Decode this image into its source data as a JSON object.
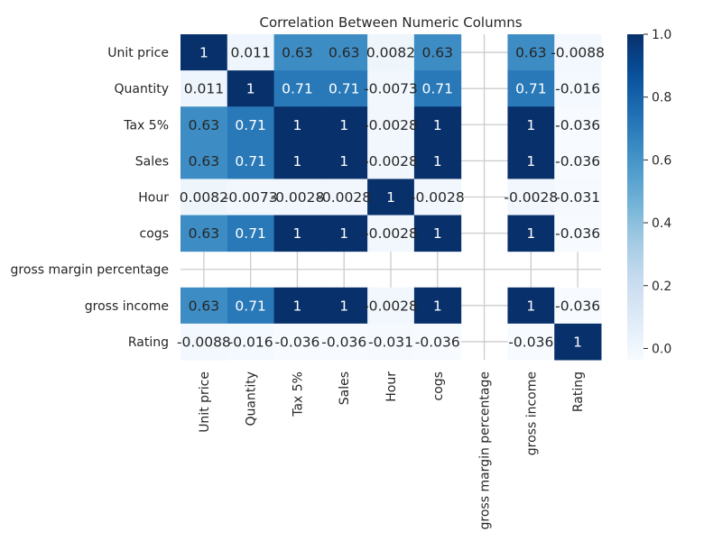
{
  "chart_data": {
    "type": "heatmap",
    "title": "Correlation Between Numeric Columns",
    "rows": [
      "Unit price",
      "Quantity",
      "Tax 5%",
      "Sales",
      "Hour",
      "cogs",
      "gross margin percentage",
      "gross income",
      "Rating"
    ],
    "cols": [
      "Unit price",
      "Quantity",
      "Tax 5%",
      "Sales",
      "Hour",
      "cogs",
      "gross margin percentage",
      "gross income",
      "Rating"
    ],
    "values": [
      [
        1,
        0.011,
        0.63,
        0.63,
        0.0082,
        0.63,
        null,
        0.63,
        -0.0088
      ],
      [
        0.011,
        1,
        0.71,
        0.71,
        -0.0073,
        0.71,
        null,
        0.71,
        -0.016
      ],
      [
        0.63,
        0.71,
        1,
        1,
        -0.0028,
        1,
        null,
        1,
        -0.036
      ],
      [
        0.63,
        0.71,
        1,
        1,
        -0.0028,
        1,
        null,
        1,
        -0.036
      ],
      [
        0.0082,
        -0.0073,
        -0.0028,
        -0.0028,
        1,
        -0.0028,
        null,
        -0.0028,
        -0.031
      ],
      [
        0.63,
        0.71,
        1,
        1,
        -0.0028,
        1,
        null,
        1,
        -0.036
      ],
      [
        null,
        null,
        null,
        null,
        null,
        null,
        null,
        null,
        null
      ],
      [
        0.63,
        0.71,
        1,
        1,
        -0.0028,
        1,
        null,
        1,
        -0.036
      ],
      [
        -0.0088,
        -0.016,
        -0.036,
        -0.036,
        -0.031,
        -0.036,
        null,
        -0.036,
        1
      ]
    ],
    "labels": [
      [
        "1",
        "0.011",
        "0.63",
        "0.63",
        "0.0082",
        "0.63",
        "",
        "0.63",
        "-0.0088"
      ],
      [
        "0.011",
        "1",
        "0.71",
        "0.71",
        "-0.0073",
        "0.71",
        "",
        "0.71",
        "-0.016"
      ],
      [
        "0.63",
        "0.71",
        "1",
        "1",
        "-0.0028",
        "1",
        "",
        "1",
        "-0.036"
      ],
      [
        "0.63",
        "0.71",
        "1",
        "1",
        "-0.0028",
        "1",
        "",
        "1",
        "-0.036"
      ],
      [
        "0.0082",
        "-0.0073",
        "-0.0028",
        "-0.0028",
        "1",
        "-0.0028",
        "",
        "-0.0028",
        "-0.031"
      ],
      [
        "0.63",
        "0.71",
        "1",
        "1",
        "-0.0028",
        "1",
        "",
        "1",
        "-0.036"
      ],
      [
        "",
        "",
        "",
        "",
        "",
        "",
        "",
        "",
        ""
      ],
      [
        "0.63",
        "0.71",
        "1",
        "1",
        "-0.0028",
        "1",
        "",
        "1",
        "-0.036"
      ],
      [
        "-0.0088",
        "-0.016",
        "-0.036",
        "-0.036",
        "-0.031",
        "-0.036",
        "",
        "-0.036",
        "1"
      ]
    ],
    "colormap": "Blues",
    "vmin": -0.036,
    "vmax": 1,
    "colorbar_ticks": [
      0.0,
      0.2,
      0.4,
      0.6,
      0.8,
      1.0
    ],
    "colorbar_tick_labels": [
      "0.0",
      "0.2",
      "0.4",
      "0.6",
      "0.8",
      "1.0"
    ],
    "grid": true,
    "colors": {
      "grid": "#cccccc",
      "text_dark": "#262626",
      "text_light": "#ffffff"
    }
  }
}
